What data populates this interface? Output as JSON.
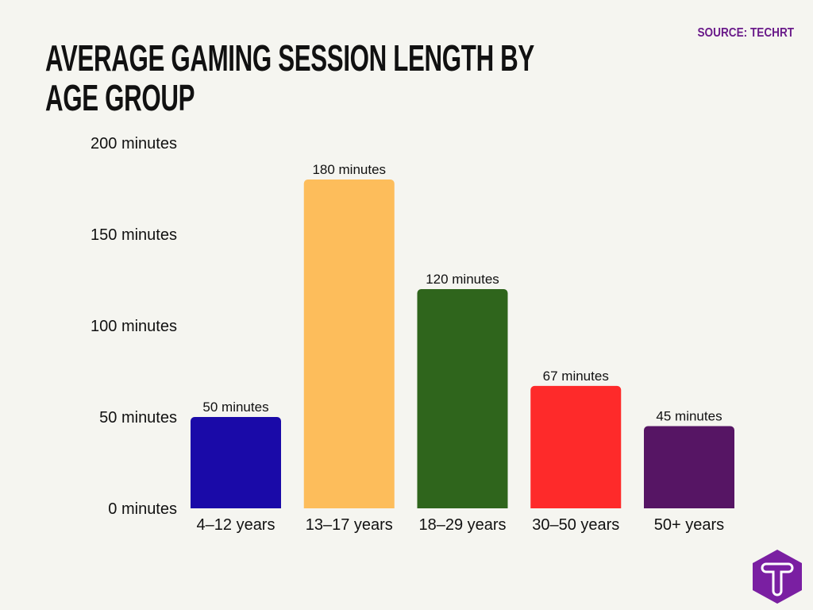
{
  "source": "SOURCE: TECHRT",
  "chart_data": {
    "type": "bar",
    "title": "AVERAGE GAMING SESSION LENGTH BY AGE GROUP",
    "categories": [
      "4–12 years",
      "13–17 years",
      "18–29 years",
      "30–50 years",
      "50+ years"
    ],
    "values": [
      50,
      180,
      120,
      67,
      45
    ],
    "data_labels": [
      "50 minutes",
      "180 minutes",
      "120 minutes",
      "67 minutes",
      "45 minutes"
    ],
    "colors": [
      "#1a0aa8",
      "#fdbd5b",
      "#2f651c",
      "#fe2a2a",
      "#561564"
    ],
    "ylim": [
      0,
      200
    ],
    "yticks": [
      0,
      50,
      100,
      150,
      200
    ],
    "ytick_labels": [
      "0 minutes",
      "50 minutes",
      "100 minutes",
      "150 minutes",
      "200 minutes"
    ],
    "xlabel": "",
    "ylabel": "",
    "grid": false,
    "legend": "none"
  },
  "logo": {
    "text": "T",
    "color": "#7a1fa2",
    "icon": "techrt-logo-icon"
  }
}
